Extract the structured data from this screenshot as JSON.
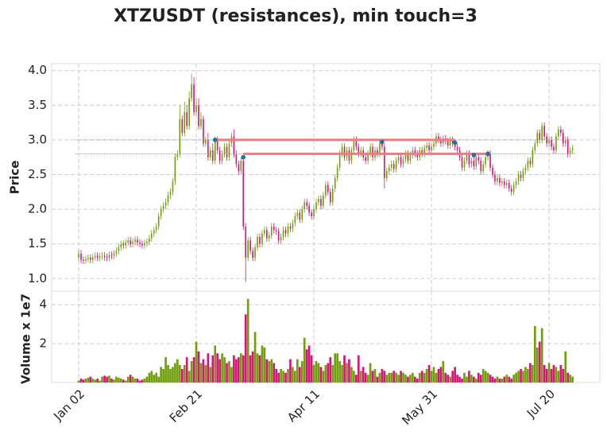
{
  "chart_data": {
    "type": "candlestick",
    "title": "XTZUSDT (resistances), min touch=3",
    "ylabel": "Price",
    "volume_label": "Volume x 1e7",
    "up_color": "#6f9f0a",
    "down_color": "#d9137a",
    "resistance_color": "#ee7b7f",
    "touch_color": "#2a6f97",
    "grid": true,
    "xlim": [
      -11.5,
      221.6
    ],
    "xticks": [
      {
        "value": 0,
        "label": "Jan 02"
      },
      {
        "value": 50,
        "label": "Feb 21"
      },
      {
        "value": 100,
        "label": "Apr 11"
      },
      {
        "value": 150,
        "label": "May 31"
      },
      {
        "value": 200,
        "label": "Jul 20"
      }
    ],
    "ylim": [
      0.82,
      4.1
    ],
    "yticks": [
      {
        "value": 1,
        "label": "1.0"
      },
      1.5,
      {
        "value": 2,
        "label": "2.0"
      },
      2.5,
      {
        "value": 3,
        "label": "3.0"
      },
      3.5,
      {
        "value": 4,
        "label": "4.0"
      }
    ],
    "volume_ylim": [
      0,
      4.7
    ],
    "volume_yticks": [
      2,
      4
    ],
    "x": [
      0,
      1,
      2,
      3,
      4,
      5,
      6,
      7,
      8,
      9,
      10,
      11,
      12,
      13,
      14,
      15,
      16,
      17,
      18,
      19,
      20,
      21,
      22,
      23,
      24,
      25,
      26,
      27,
      28,
      29,
      30,
      31,
      32,
      33,
      34,
      35,
      36,
      37,
      38,
      39,
      40,
      41,
      42,
      43,
      44,
      45,
      46,
      47,
      48,
      49,
      50,
      51,
      52,
      53,
      54,
      55,
      56,
      57,
      58,
      59,
      60,
      61,
      62,
      63,
      64,
      65,
      66,
      67,
      68,
      69,
      70,
      71,
      72,
      73,
      74,
      75,
      76,
      77,
      78,
      79,
      80,
      81,
      82,
      83,
      84,
      85,
      86,
      87,
      88,
      89,
      90,
      91,
      92,
      93,
      94,
      95,
      96,
      97,
      98,
      99,
      100,
      101,
      102,
      103,
      104,
      105,
      106,
      107,
      108,
      109,
      110,
      111,
      112,
      113,
      114,
      115,
      116,
      117,
      118,
      119,
      120,
      121,
      122,
      123,
      124,
      125,
      126,
      127,
      128,
      129,
      130,
      131,
      132,
      133,
      134,
      135,
      136,
      137,
      138,
      139,
      140,
      141,
      142,
      143,
      144,
      145,
      146,
      147,
      148,
      149,
      150,
      151,
      152,
      153,
      154,
      155,
      156,
      157,
      158,
      159,
      160,
      161,
      162,
      163,
      164,
      165,
      166,
      167,
      168,
      169,
      170,
      171,
      172,
      173,
      174,
      175,
      176,
      177,
      178,
      179,
      180,
      181,
      182,
      183,
      184,
      185,
      186,
      187,
      188,
      189,
      190,
      191,
      192,
      193,
      194,
      195,
      196,
      197,
      198,
      199,
      200,
      201,
      202,
      203,
      204,
      205,
      206,
      207,
      208,
      209,
      210
    ],
    "open": [
      1.3,
      1.36,
      1.27,
      1.26,
      1.28,
      1.3,
      1.27,
      1.31,
      1.33,
      1.3,
      1.32,
      1.33,
      1.31,
      1.3,
      1.34,
      1.33,
      1.36,
      1.4,
      1.45,
      1.5,
      1.48,
      1.52,
      1.55,
      1.5,
      1.53,
      1.56,
      1.52,
      1.5,
      1.48,
      1.51,
      1.53,
      1.58,
      1.65,
      1.7,
      1.75,
      1.9,
      2.0,
      2.05,
      2.1,
      2.2,
      2.25,
      2.4,
      2.75,
      2.8,
      3.3,
      3.1,
      3.4,
      3.2,
      3.6,
      3.8,
      3.4,
      3.5,
      3.2,
      3.3,
      2.95,
      3.0,
      2.75,
      2.85,
      2.7,
      3.0,
      2.85,
      2.7,
      2.8,
      2.9,
      2.75,
      2.95,
      3.05,
      2.8,
      2.65,
      2.55,
      2.7,
      1.75,
      1.3,
      1.55,
      1.4,
      1.3,
      1.45,
      1.6,
      1.5,
      1.65,
      1.7,
      1.58,
      1.62,
      1.75,
      1.7,
      1.68,
      1.55,
      1.6,
      1.7,
      1.65,
      1.75,
      1.72,
      1.8,
      1.9,
      1.95,
      1.85,
      2.0,
      2.1,
      2.05,
      1.95,
      1.9,
      2.0,
      2.1,
      2.15,
      2.05,
      2.2,
      2.35,
      2.25,
      2.1,
      2.3,
      2.45,
      2.6,
      2.8,
      2.9,
      2.75,
      2.85,
      2.7,
      2.85,
      3.0,
      2.9,
      2.8,
      2.85,
      2.75,
      2.7,
      2.8,
      2.9,
      2.75,
      2.85,
      2.8,
      2.95,
      2.9,
      2.45,
      2.55,
      2.6,
      2.65,
      2.58,
      2.7,
      2.75,
      2.65,
      2.72,
      2.8,
      2.7,
      2.78,
      2.85,
      2.8,
      2.75,
      2.85,
      2.8,
      2.88,
      2.92,
      2.85,
      2.9,
      2.95,
      3.05,
      3.0,
      2.95,
      3.02,
      2.98,
      2.92,
      3.0,
      2.95,
      2.9,
      2.85,
      2.75,
      2.6,
      2.7,
      2.8,
      2.65,
      2.7,
      2.62,
      2.75,
      2.7,
      2.55,
      2.65,
      2.75,
      2.8,
      2.6,
      2.5,
      2.4,
      2.45,
      2.38,
      2.4,
      2.35,
      2.38,
      2.3,
      2.25,
      2.35,
      2.4,
      2.5,
      2.45,
      2.55,
      2.6,
      2.7,
      2.65,
      2.85,
      2.95,
      3.1,
      3.0,
      3.2,
      3.05,
      2.95,
      3.0,
      2.9,
      2.85,
      3.05,
      3.15,
      3.1,
      2.95,
      3.0,
      2.8,
      2.85
    ],
    "high": [
      1.41,
      1.41,
      1.32,
      1.33,
      1.35,
      1.35,
      1.36,
      1.38,
      1.38,
      1.37,
      1.38,
      1.38,
      1.36,
      1.39,
      1.39,
      1.41,
      1.45,
      1.5,
      1.55,
      1.55,
      1.57,
      1.6,
      1.6,
      1.58,
      1.61,
      1.61,
      1.57,
      1.55,
      1.56,
      1.58,
      1.63,
      1.7,
      1.75,
      1.8,
      1.95,
      2.05,
      2.1,
      2.15,
      2.25,
      2.3,
      2.45,
      2.8,
      2.85,
      3.5,
      3.35,
      3.55,
      3.5,
      3.7,
      3.95,
      3.9,
      3.6,
      3.6,
      3.4,
      3.35,
      3.05,
      3.1,
      2.9,
      2.95,
      3.05,
      3.05,
      2.9,
      2.85,
      2.95,
      2.95,
      3.0,
      3.1,
      3.15,
      2.85,
      2.7,
      2.75,
      2.75,
      1.8,
      1.6,
      1.6,
      1.45,
      1.5,
      1.65,
      1.65,
      1.7,
      1.75,
      1.75,
      1.67,
      1.8,
      1.8,
      1.75,
      1.73,
      1.65,
      1.75,
      1.75,
      1.8,
      1.8,
      1.85,
      1.95,
      2.0,
      2.0,
      2.05,
      2.15,
      2.15,
      2.1,
      2.0,
      2.05,
      2.15,
      2.2,
      2.2,
      2.25,
      2.4,
      2.4,
      2.3,
      2.35,
      2.5,
      2.65,
      2.85,
      2.95,
      2.95,
      2.9,
      2.9,
      2.9,
      3.05,
      3.05,
      2.95,
      2.9,
      2.9,
      2.8,
      2.85,
      2.95,
      2.95,
      2.9,
      2.9,
      3.0,
      3.0,
      2.95,
      2.6,
      2.65,
      2.7,
      2.7,
      2.75,
      2.8,
      2.8,
      2.77,
      2.85,
      2.85,
      2.83,
      2.9,
      2.9,
      2.85,
      2.9,
      2.9,
      2.93,
      2.97,
      2.97,
      2.95,
      3.0,
      3.1,
      3.1,
      3.05,
      3.07,
      3.07,
      3.03,
      3.05,
      3.05,
      3.0,
      2.95,
      2.9,
      2.8,
      2.75,
      2.85,
      2.85,
      2.75,
      2.75,
      2.8,
      2.8,
      2.75,
      2.7,
      2.8,
      2.85,
      2.85,
      2.65,
      2.55,
      2.5,
      2.5,
      2.45,
      2.45,
      2.43,
      2.43,
      2.35,
      2.4,
      2.45,
      2.55,
      2.55,
      2.6,
      2.65,
      2.75,
      2.75,
      2.9,
      3.0,
      3.15,
      3.15,
      3.25,
      3.25,
      3.1,
      3.05,
      3.05,
      2.95,
      3.1,
      3.2,
      3.2,
      3.15,
      3.05,
      3.05,
      2.9,
      2.93
    ],
    "low": [
      1.25,
      1.22,
      1.21,
      1.21,
      1.23,
      1.22,
      1.22,
      1.26,
      1.25,
      1.25,
      1.27,
      1.26,
      1.25,
      1.25,
      1.28,
      1.28,
      1.31,
      1.35,
      1.4,
      1.43,
      1.43,
      1.47,
      1.45,
      1.45,
      1.48,
      1.47,
      1.45,
      1.43,
      1.43,
      1.46,
      1.48,
      1.53,
      1.6,
      1.65,
      1.7,
      1.85,
      1.95,
      2.0,
      2.05,
      2.15,
      2.2,
      2.35,
      2.7,
      2.75,
      3.05,
      3.05,
      3.15,
      3.15,
      3.55,
      3.35,
      3.35,
      3.15,
      3.15,
      2.9,
      2.9,
      2.7,
      2.7,
      2.65,
      2.65,
      2.8,
      2.65,
      2.65,
      2.75,
      2.7,
      2.7,
      2.9,
      2.75,
      2.6,
      2.5,
      2.5,
      1.7,
      0.95,
      1.25,
      1.35,
      1.25,
      1.25,
      1.4,
      1.45,
      1.45,
      1.6,
      1.53,
      1.53,
      1.57,
      1.65,
      1.63,
      1.5,
      1.5,
      1.55,
      1.6,
      1.6,
      1.67,
      1.67,
      1.75,
      1.85,
      1.8,
      1.8,
      1.95,
      2.0,
      1.9,
      1.85,
      1.85,
      1.95,
      2.05,
      2.0,
      2.0,
      2.15,
      2.2,
      2.05,
      2.05,
      2.25,
      2.4,
      2.55,
      2.75,
      2.7,
      2.7,
      2.65,
      2.65,
      2.8,
      2.85,
      2.75,
      2.75,
      2.7,
      2.65,
      2.65,
      2.75,
      2.7,
      2.7,
      2.75,
      2.75,
      2.85,
      2.3,
      2.4,
      2.5,
      2.55,
      2.53,
      2.53,
      2.65,
      2.6,
      2.6,
      2.67,
      2.65,
      2.65,
      2.73,
      2.75,
      2.7,
      2.7,
      2.75,
      2.75,
      2.83,
      2.8,
      2.8,
      2.85,
      2.9,
      2.95,
      2.9,
      2.9,
      2.93,
      2.87,
      2.87,
      2.9,
      2.85,
      2.8,
      2.7,
      2.55,
      2.55,
      2.65,
      2.6,
      2.6,
      2.57,
      2.57,
      2.65,
      2.5,
      2.5,
      2.6,
      2.7,
      2.55,
      2.45,
      2.35,
      2.35,
      2.33,
      2.33,
      2.3,
      2.3,
      2.25,
      2.2,
      2.2,
      2.3,
      2.35,
      2.4,
      2.4,
      2.5,
      2.55,
      2.6,
      2.6,
      2.8,
      2.9,
      2.95,
      2.95,
      3.0,
      2.9,
      2.9,
      2.85,
      2.8,
      2.8,
      3.0,
      3.05,
      2.9,
      2.9,
      2.75,
      2.75,
      2.8
    ],
    "close": [
      1.36,
      1.27,
      1.26,
      1.28,
      1.3,
      1.27,
      1.31,
      1.33,
      1.3,
      1.32,
      1.33,
      1.31,
      1.3,
      1.34,
      1.33,
      1.36,
      1.4,
      1.45,
      1.5,
      1.48,
      1.52,
      1.55,
      1.5,
      1.53,
      1.56,
      1.52,
      1.5,
      1.48,
      1.51,
      1.53,
      1.58,
      1.65,
      1.7,
      1.75,
      1.9,
      2.0,
      2.05,
      2.1,
      2.2,
      2.25,
      2.4,
      2.75,
      2.8,
      3.3,
      3.1,
      3.4,
      3.2,
      3.6,
      3.8,
      3.4,
      3.5,
      3.2,
      3.3,
      2.95,
      3.0,
      2.75,
      2.85,
      2.7,
      3.0,
      2.85,
      2.7,
      2.8,
      2.9,
      2.75,
      2.95,
      3.05,
      2.8,
      2.65,
      2.55,
      2.7,
      1.75,
      1.3,
      1.55,
      1.4,
      1.3,
      1.45,
      1.6,
      1.5,
      1.65,
      1.7,
      1.58,
      1.62,
      1.75,
      1.7,
      1.68,
      1.55,
      1.6,
      1.7,
      1.65,
      1.75,
      1.72,
      1.8,
      1.9,
      1.95,
      1.85,
      2.0,
      2.1,
      2.05,
      1.95,
      1.9,
      2.0,
      2.1,
      2.15,
      2.05,
      2.2,
      2.35,
      2.25,
      2.1,
      2.3,
      2.45,
      2.6,
      2.8,
      2.9,
      2.75,
      2.85,
      2.7,
      2.85,
      3.0,
      2.9,
      2.8,
      2.85,
      2.75,
      2.7,
      2.8,
      2.9,
      2.75,
      2.85,
      2.8,
      2.95,
      2.9,
      2.45,
      2.55,
      2.6,
      2.65,
      2.58,
      2.7,
      2.75,
      2.65,
      2.72,
      2.8,
      2.7,
      2.78,
      2.85,
      2.8,
      2.75,
      2.85,
      2.8,
      2.88,
      2.92,
      2.85,
      2.9,
      2.95,
      3.05,
      3.0,
      2.95,
      3.02,
      2.98,
      2.92,
      3.0,
      2.95,
      2.9,
      2.85,
      2.75,
      2.6,
      2.7,
      2.8,
      2.65,
      2.7,
      2.62,
      2.75,
      2.7,
      2.55,
      2.65,
      2.75,
      2.8,
      2.6,
      2.5,
      2.4,
      2.45,
      2.38,
      2.4,
      2.35,
      2.38,
      2.3,
      2.25,
      2.35,
      2.4,
      2.5,
      2.45,
      2.55,
      2.6,
      2.7,
      2.65,
      2.85,
      2.95,
      3.1,
      3.0,
      3.2,
      3.05,
      2.95,
      3.0,
      2.9,
      2.85,
      3.05,
      3.15,
      3.1,
      2.95,
      3.0,
      2.8,
      2.85,
      2.88
    ],
    "volume": [
      0.1,
      0.2,
      0.15,
      0.2,
      0.25,
      0.3,
      0.2,
      0.15,
      0.2,
      0.1,
      0.3,
      0.35,
      0.3,
      0.35,
      0.2,
      0.15,
      0.3,
      0.25,
      0.2,
      0.15,
      0.1,
      0.3,
      0.4,
      0.3,
      0.2,
      0.2,
      0.1,
      0.15,
      0.2,
      0.3,
      0.5,
      0.6,
      0.4,
      0.5,
      0.3,
      0.8,
      0.7,
      1.3,
      0.9,
      0.7,
      0.8,
      1.0,
      1.2,
      0.9,
      0.7,
      0.9,
      1.3,
      0.6,
      1.1,
      1.3,
      2.1,
      1.6,
      1.0,
      1.2,
      0.9,
      1.5,
      0.8,
      1.4,
      1.9,
      1.5,
      1.2,
      1.5,
      1.3,
      1.0,
      1.1,
      0.8,
      1.4,
      1.2,
      1.3,
      1.5,
      1.4,
      3.5,
      4.3,
      1.4,
      1.6,
      2.6,
      1.5,
      1.4,
      1.9,
      1.8,
      1.2,
      1.1,
      1.2,
      1.0,
      0.7,
      0.5,
      0.7,
      0.6,
      0.5,
      0.7,
      1.2,
      0.8,
      0.6,
      1.2,
      0.8,
      1.1,
      2.3,
      1.7,
      1.9,
      1.4,
      0.9,
      1.1,
      1.0,
      0.8,
      0.6,
      0.9,
      1.0,
      1.3,
      0.9,
      1.5,
      1.5,
      1.1,
      0.9,
      1.4,
      1.0,
      1.2,
      0.8,
      0.6,
      0.4,
      1.4,
      0.6,
      0.8,
      0.5,
      0.4,
      1.0,
      0.6,
      0.7,
      0.3,
      0.5,
      0.7,
      0.6,
      0.4,
      0.5,
      0.5,
      0.6,
      0.5,
      0.4,
      0.6,
      0.5,
      0.4,
      0.3,
      0.4,
      0.5,
      0.3,
      0.2,
      0.5,
      0.6,
      0.5,
      0.7,
      0.9,
      0.6,
      0.8,
      0.5,
      0.7,
      0.8,
      1.1,
      0.5,
      0.4,
      0.3,
      0.6,
      0.8,
      0.4,
      0.3,
      0.2,
      0.5,
      0.3,
      0.6,
      0.4,
      0.3,
      0.2,
      0.5,
      0.4,
      0.7,
      0.6,
      0.5,
      0.4,
      0.3,
      0.2,
      0.3,
      0.2,
      0.2,
      0.3,
      0.4,
      0.3,
      0.2,
      0.4,
      0.5,
      0.6,
      0.7,
      0.6,
      0.8,
      0.7,
      1.0,
      0.9,
      2.9,
      1.8,
      2.1,
      2.8,
      0.9,
      0.7,
      1.0,
      0.7,
      0.9,
      0.8,
      0.6,
      0.9,
      0.7,
      1.6,
      0.5,
      0.4,
      0.3
    ],
    "resistances": [
      {
        "value": 3.0,
        "start": 58,
        "end": 160
      },
      {
        "value": 2.8,
        "start": 70,
        "end": 174
      }
    ],
    "touches": {
      "x": [
        58,
        70,
        129,
        160,
        168,
        174
      ],
      "y": [
        3.0,
        2.75,
        2.97,
        2.96,
        2.78,
        2.8
      ]
    }
  }
}
